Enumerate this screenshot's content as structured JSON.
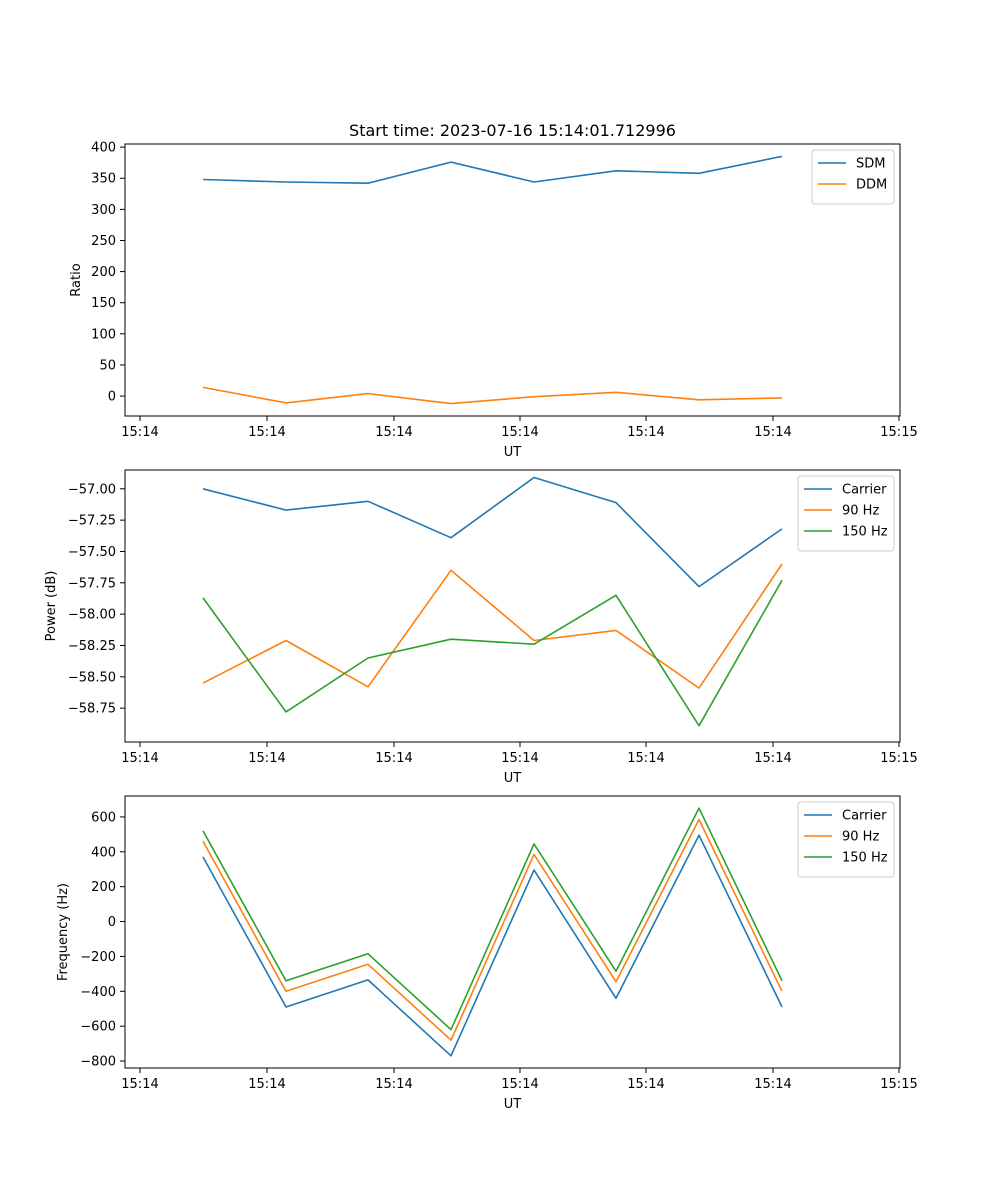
{
  "chart_data": [
    {
      "type": "line",
      "title": "Start time: 2023-07-16 15:14:01.712996",
      "xlabel": "UT",
      "ylabel": "Ratio",
      "x_tick_labels": [
        "15:14",
        "15:14",
        "15:14",
        "15:14",
        "15:14",
        "15:14",
        "15:15"
      ],
      "y_ticks": [
        0,
        50,
        100,
        150,
        200,
        250,
        300,
        350,
        400
      ],
      "ylim": [
        -32,
        405
      ],
      "x": [
        1,
        2,
        3,
        4,
        5,
        6,
        7,
        8
      ],
      "series": [
        {
          "name": "SDM",
          "color": "#1f77b4",
          "values": [
            348,
            344,
            342,
            376,
            344,
            362,
            358,
            385
          ]
        },
        {
          "name": "DDM",
          "color": "#ff7f0e",
          "values": [
            14,
            -11,
            4,
            -12,
            -1,
            6,
            -6,
            -3
          ]
        }
      ],
      "legend": "top-right"
    },
    {
      "type": "line",
      "title": "",
      "xlabel": "UT",
      "ylabel": "Power (dB)",
      "x_tick_labels": [
        "15:14",
        "15:14",
        "15:14",
        "15:14",
        "15:14",
        "15:14",
        "15:15"
      ],
      "y_ticks": [
        -58.75,
        -58.5,
        -58.25,
        -58.0,
        -57.75,
        -57.5,
        -57.25,
        -57.0
      ],
      "y_tick_labels": [
        "−58.75",
        "−58.50",
        "−58.25",
        "−58.00",
        "−57.75",
        "−57.50",
        "−57.25",
        "−57.00"
      ],
      "ylim": [
        -59.02,
        -56.85
      ],
      "x": [
        1,
        2,
        3,
        4,
        5,
        6,
        7,
        8
      ],
      "series": [
        {
          "name": "Carrier",
          "color": "#1f77b4",
          "values": [
            -57.0,
            -57.17,
            -57.1,
            -57.39,
            -56.91,
            -57.11,
            -57.78,
            -57.32
          ]
        },
        {
          "name": "90 Hz",
          "color": "#ff7f0e",
          "values": [
            -58.55,
            -58.21,
            -58.58,
            -57.65,
            -58.21,
            -58.13,
            -58.59,
            -57.6
          ]
        },
        {
          "name": "150 Hz",
          "color": "#2ca02c",
          "values": [
            -57.87,
            -58.78,
            -58.35,
            -58.2,
            -58.24,
            -57.85,
            -58.89,
            -57.73
          ]
        }
      ],
      "legend": "top-right"
    },
    {
      "type": "line",
      "title": "",
      "xlabel": "UT",
      "ylabel": "Frequency (Hz)",
      "x_tick_labels": [
        "15:14",
        "15:14",
        "15:14",
        "15:14",
        "15:14",
        "15:14",
        "15:15"
      ],
      "y_ticks": [
        -800,
        -600,
        -400,
        -200,
        0,
        200,
        400,
        600
      ],
      "y_tick_labels": [
        "−800",
        "−600",
        "−400",
        "−200",
        "0",
        "200",
        "400",
        "600"
      ],
      "ylim": [
        -840,
        720
      ],
      "x": [
        1,
        2,
        3,
        4,
        5,
        6,
        7,
        8
      ],
      "series": [
        {
          "name": "Carrier",
          "color": "#1f77b4",
          "values": [
            370,
            -490,
            -335,
            -770,
            295,
            -440,
            495,
            -490
          ]
        },
        {
          "name": "90 Hz",
          "color": "#ff7f0e",
          "values": [
            460,
            -400,
            -245,
            -680,
            385,
            -345,
            585,
            -400
          ]
        },
        {
          "name": "150 Hz",
          "color": "#2ca02c",
          "values": [
            520,
            -340,
            -185,
            -620,
            445,
            -285,
            650,
            -340
          ]
        }
      ],
      "legend": "top-right"
    }
  ]
}
